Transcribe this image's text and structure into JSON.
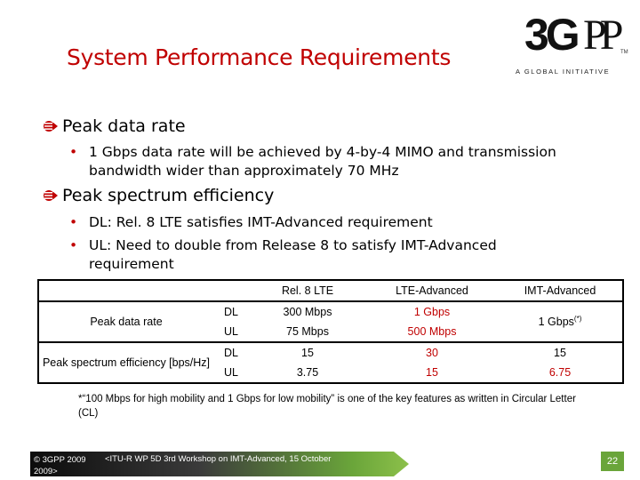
{
  "slide": {
    "title": "System Performance Requirements"
  },
  "logo": {
    "mark_3g": "3G",
    "mark_pp": "PP",
    "tagline": "A GLOBAL INITIATIVE",
    "tm": "TM"
  },
  "bullets": [
    {
      "heading": "Peak data rate",
      "items": [
        {
          "line1": "1 Gbps data rate will be achieved by 4-by-4 MIMO and transmission",
          "line2": "bandwidth wider than approximately 70 MHz"
        }
      ]
    },
    {
      "heading": "Peak spectrum efficiency",
      "items": [
        {
          "line1": "DL: Rel. 8 LTE satisfies IMT-Advanced requirement",
          "line2": ""
        },
        {
          "line1": "UL: Need to double from Release 8 to satisfy IMT-Advanced",
          "line2": "requirement"
        }
      ]
    }
  ],
  "table": {
    "headers": [
      "Rel. 8 LTE",
      "LTE-Advanced",
      "IMT-Advanced"
    ],
    "rows": [
      {
        "metric": "Peak data rate",
        "dir": "DL",
        "rel8": "300 Mbps",
        "lte_adv": "1 Gbps",
        "imt": "1 Gbps",
        "imt_sup": "(*)"
      },
      {
        "dir": "UL",
        "rel8": "75 Mbps",
        "lte_adv": "500 Mbps"
      },
      {
        "metric": "Peak spectrum efficiency [bps/Hz]",
        "dir": "DL",
        "rel8": "15",
        "lte_adv": "30",
        "imt": "15"
      },
      {
        "dir": "UL",
        "rel8": "3.75",
        "lte_adv": "15",
        "imt": "6.75"
      }
    ]
  },
  "footnote": "*“100 Mbps for high mobility and 1 Gbps for low mobility” is one of the key features as written in Circular Letter (CL)",
  "footer": {
    "copyright": "© 3GPP 2009",
    "copyright_cut": "2009>",
    "event": "<ITU-R WP 5D 3rd Workshop on IMT-Advanced, 15 October",
    "page": "22"
  },
  "colors": {
    "title": "#c00000",
    "accent_red": "#c00000",
    "footer_green": "#6aa53a"
  }
}
